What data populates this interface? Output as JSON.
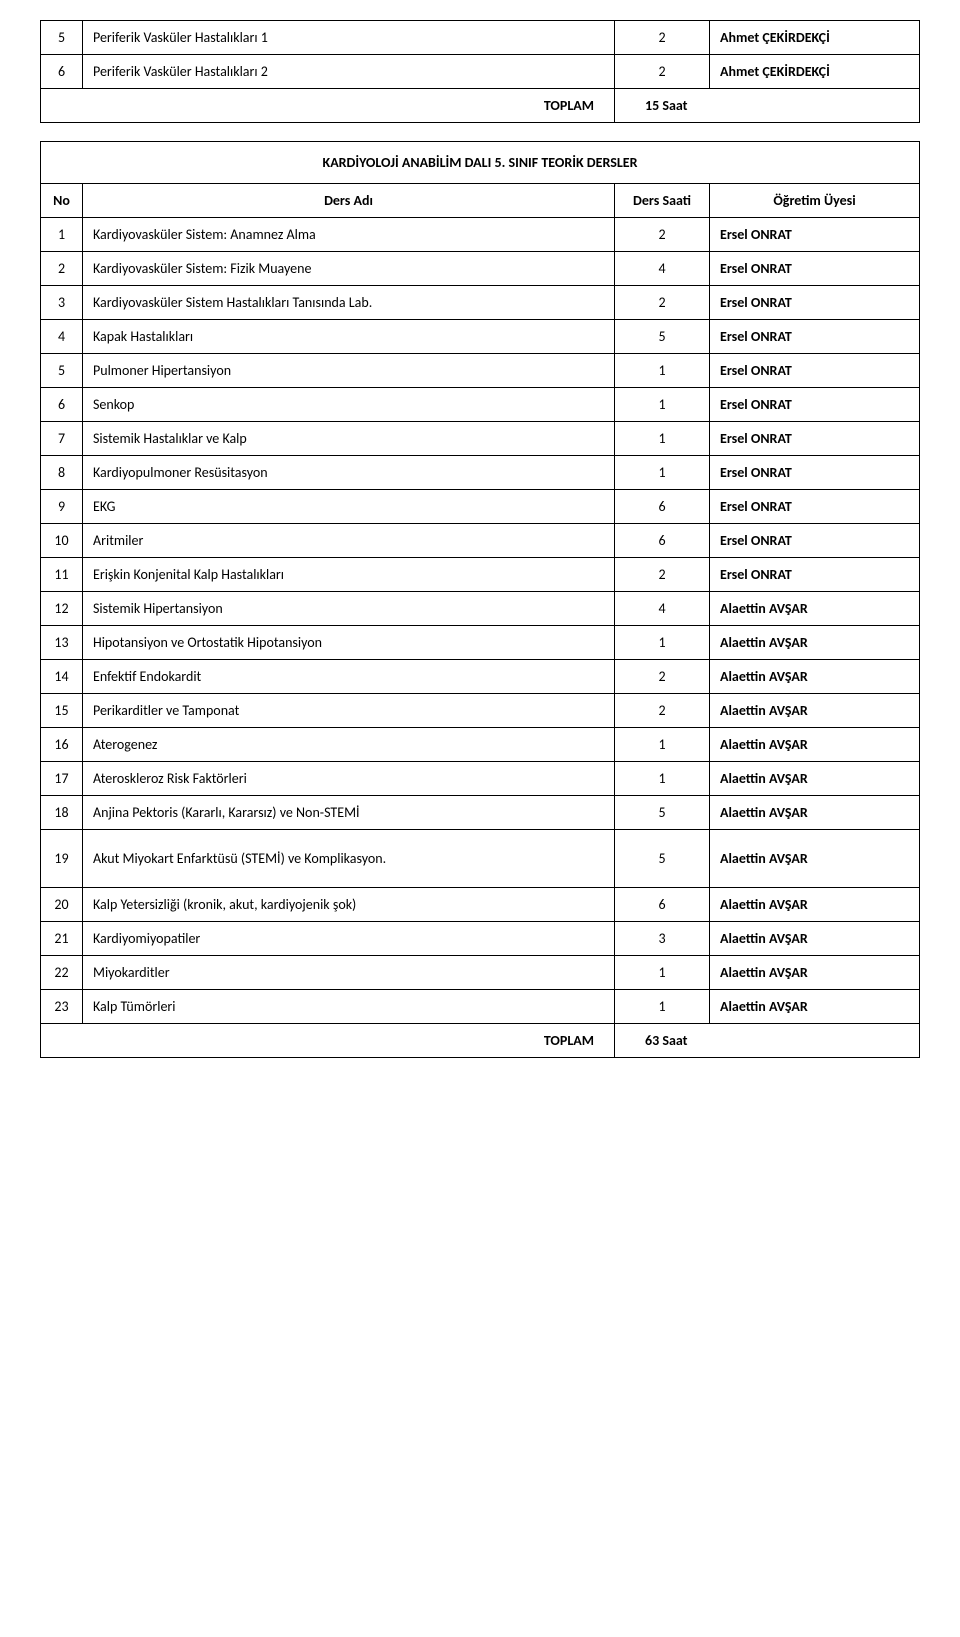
{
  "table1": {
    "rows": [
      {
        "no": "5",
        "name": "Periferik Vasküler Hastalıkları 1",
        "hours": "2",
        "instructor": "Ahmet ÇEKİRDEKÇİ"
      },
      {
        "no": "6",
        "name": "Periferik Vasküler Hastalıkları 2",
        "hours": "2",
        "instructor": "Ahmet ÇEKİRDEKÇİ"
      }
    ],
    "total_label": "TOPLAM",
    "total_hours": "15 Saat"
  },
  "table2": {
    "title": "KARDİYOLOJİ ANABİLİM DALI 5. SINIF TEORİK DERSLER",
    "header": {
      "no": "No",
      "name": "Ders Adı",
      "hours": "Ders Saati",
      "instructor": "Öğretim Üyesi"
    },
    "rows": [
      {
        "no": "1",
        "name": "Kardiyovasküler Sistem: Anamnez Alma",
        "hours": "2",
        "instructor": "Ersel ONRAT"
      },
      {
        "no": "2",
        "name": "Kardiyovasküler Sistem: Fizik Muayene",
        "hours": "4",
        "instructor": "Ersel ONRAT"
      },
      {
        "no": "3",
        "name": "Kardiyovasküler Sistem Hastalıkları Tanısında Lab.",
        "hours": "2",
        "instructor": "Ersel ONRAT"
      },
      {
        "no": "4",
        "name": "Kapak Hastalıkları",
        "hours": "5",
        "instructor": "Ersel ONRAT"
      },
      {
        "no": "5",
        "name": "Pulmoner Hipertansiyon",
        "hours": "1",
        "instructor": "Ersel ONRAT"
      },
      {
        "no": "6",
        "name": "Senkop",
        "hours": "1",
        "instructor": "Ersel ONRAT"
      },
      {
        "no": "7",
        "name": "Sistemik Hastalıklar ve Kalp",
        "hours": "1",
        "instructor": "Ersel ONRAT"
      },
      {
        "no": "8",
        "name": "Kardiyopulmoner Resüsitasyon",
        "hours": "1",
        "instructor": "Ersel ONRAT"
      },
      {
        "no": "9",
        "name": "EKG",
        "hours": "6",
        "instructor": "Ersel ONRAT"
      },
      {
        "no": "10",
        "name": "Aritmiler",
        "hours": "6",
        "instructor": "Ersel ONRAT"
      },
      {
        "no": "11",
        "name": "Erişkin Konjenital Kalp Hastalıkları",
        "hours": "2",
        "instructor": "Ersel ONRAT"
      },
      {
        "no": "12",
        "name": "Sistemik Hipertansiyon",
        "hours": "4",
        "instructor": "Alaettin AVŞAR"
      },
      {
        "no": "13",
        "name": "Hipotansiyon ve Ortostatik Hipotansiyon",
        "hours": "1",
        "instructor": "Alaettin AVŞAR"
      },
      {
        "no": "14",
        "name": "Enfektif Endokardit",
        "hours": "2",
        "instructor": "Alaettin AVŞAR"
      },
      {
        "no": "15",
        "name": "Perikarditler ve Tamponat",
        "hours": "2",
        "instructor": "Alaettin AVŞAR"
      },
      {
        "no": "16",
        "name": "Aterogenez",
        "hours": "1",
        "instructor": "Alaettin AVŞAR"
      },
      {
        "no": "17",
        "name": "Ateroskleroz Risk Faktörleri",
        "hours": "1",
        "instructor": "Alaettin AVŞAR"
      },
      {
        "no": "18",
        "name": "Anjina Pektoris (Kararlı, Kararsız) ve Non-STEMİ",
        "hours": "5",
        "instructor": "Alaettin AVŞAR"
      },
      {
        "no": "19",
        "name": "Akut Miyokart Enfarktüsü (STEMİ) ve Komplikasyon.",
        "hours": "5",
        "instructor": "Alaettin AVŞAR",
        "tall": true
      },
      {
        "no": "20",
        "name": "Kalp Yetersizliği (kronik, akut, kardiyojenik şok)",
        "hours": "6",
        "instructor": "Alaettin AVŞAR"
      },
      {
        "no": "21",
        "name": "Kardiyomiyopatiler",
        "hours": "3",
        "instructor": "Alaettin AVŞAR"
      },
      {
        "no": "22",
        "name": "Miyokarditler",
        "hours": "1",
        "instructor": "Alaettin AVŞAR"
      },
      {
        "no": "23",
        "name": "Kalp Tümörleri",
        "hours": "1",
        "instructor": "Alaettin AVŞAR"
      }
    ],
    "total_label": "TOPLAM",
    "total_hours": "63 Saat"
  }
}
